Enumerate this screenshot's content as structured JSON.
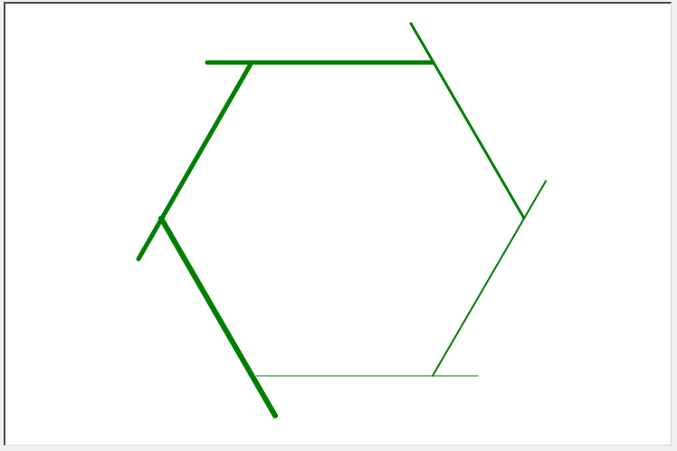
{
  "diagram": {
    "stroke_color": "#008000",
    "background": "#ffffff",
    "segments": [
      {
        "name": "hexagon-top-edge"
      },
      {
        "name": "hexagon-upper-right-edge"
      },
      {
        "name": "hexagon-lower-right-edge"
      },
      {
        "name": "hexagon-bottom-edge"
      },
      {
        "name": "hexagon-lower-left-edge"
      },
      {
        "name": "hexagon-upper-left-edge"
      }
    ]
  }
}
